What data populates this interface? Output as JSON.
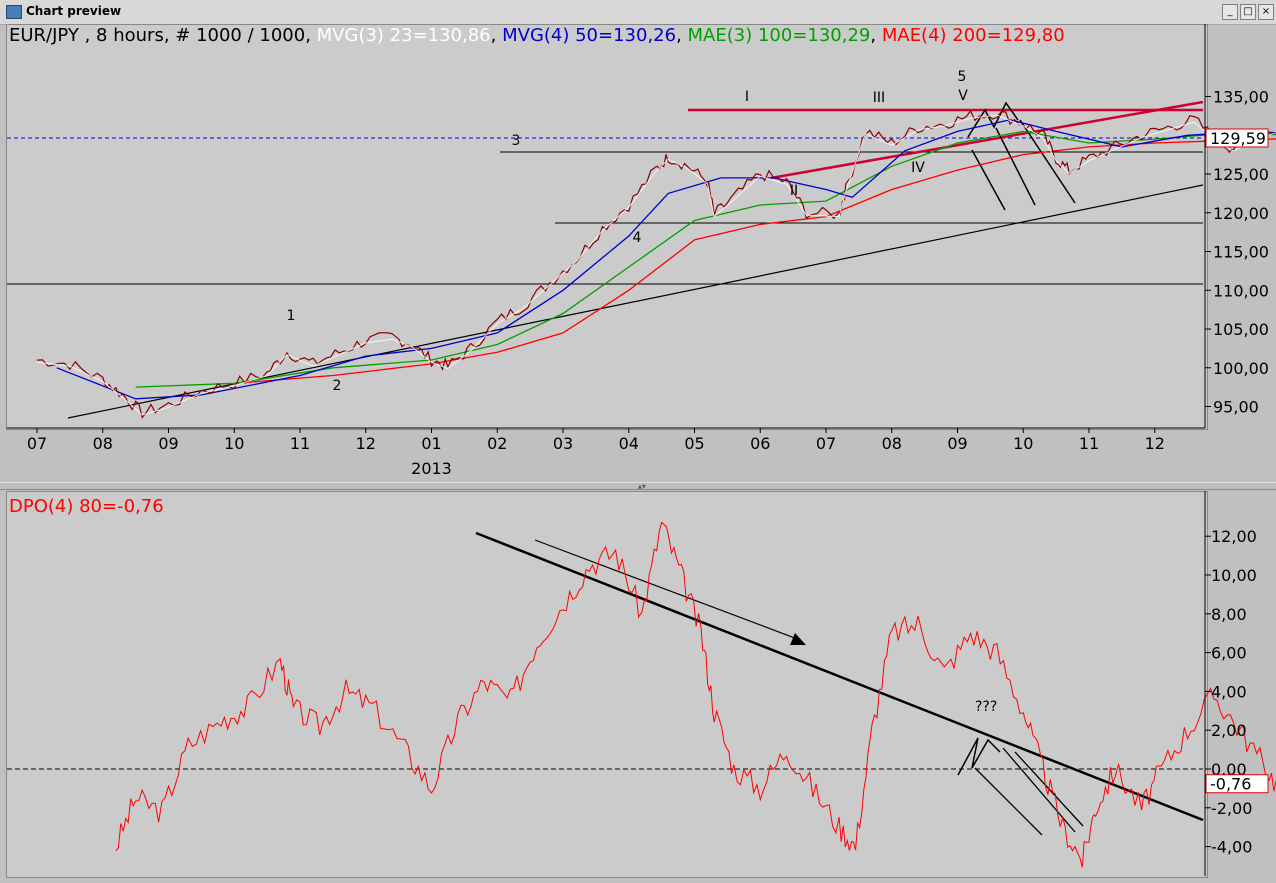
{
  "window": {
    "title": "Chart preview"
  },
  "colors": {
    "mvg3": "#ffffff",
    "mvg4": "#0000cc",
    "mae3": "#00a000",
    "mae4": "#ff0000",
    "wave_channel": "#cc0033",
    "dpo": "#ff0000",
    "price_line": "#0000cc"
  },
  "chart_data": [
    {
      "type": "line",
      "legend": {
        "symbol": "EUR/JPY , 8 hours, # 1000 / 1000",
        "mvg3": "MVG(3) 23=130,86",
        "mvg4": "MVG(4) 50=130,26",
        "mae3": "MAE(3) 100=130,29",
        "mae4": "MAE(4) 200=129,80"
      },
      "ylim": [
        93,
        138
      ],
      "yticks": [
        "95,00",
        "100,00",
        "105,00",
        "110,00",
        "115,00",
        "120,00",
        "125,00",
        "130,00",
        "135,00"
      ],
      "xticks": [
        "07",
        "08",
        "09",
        "10",
        "11",
        "12",
        "01",
        "02",
        "03",
        "04",
        "05",
        "06",
        "07",
        "08",
        "09",
        "10",
        "11",
        "12"
      ],
      "year_label": "2013",
      "current_value": "129,59",
      "wave_labels": [
        "1",
        "2",
        "3",
        "4",
        "5",
        "I",
        "II",
        "III",
        "IV",
        "V"
      ],
      "series": [
        {
          "name": "EUR/JPY",
          "values": [
            [
              0,
              101
            ],
            [
              0.5,
              100.5
            ],
            [
              1,
              98.5
            ],
            [
              1.3,
              96.5
            ],
            [
              1.6,
              94.2
            ],
            [
              2,
              95.2
            ],
            [
              2.5,
              97
            ],
            [
              3,
              98
            ],
            [
              3.5,
              99.3
            ],
            [
              3.8,
              102
            ],
            [
              4.2,
              100.5
            ],
            [
              4.6,
              102
            ],
            [
              5.0,
              103.5
            ],
            [
              5.4,
              104
            ],
            [
              5.7,
              103
            ],
            [
              6.0,
              101
            ],
            [
              6.25,
              100.2
            ],
            [
              6.6,
              102.5
            ],
            [
              7,
              106
            ],
            [
              7.4,
              108
            ],
            [
              7.8,
              111
            ],
            [
              8.2,
              114
            ],
            [
              8.6,
              118
            ],
            [
              9,
              121
            ],
            [
              9.4,
              125.5
            ],
            [
              9.6,
              127.2
            ],
            [
              9.9,
              126
            ],
            [
              10.2,
              124
            ],
            [
              10.3,
              119.8
            ],
            [
              10.6,
              122
            ],
            [
              11,
              125
            ],
            [
              11.4,
              124
            ],
            [
              11.7,
              120
            ],
            [
              12.2,
              119.8
            ],
            [
              12.3,
              123
            ],
            [
              12.6,
              130.5
            ],
            [
              13,
              129
            ],
            [
              13.4,
              131
            ],
            [
              13.8,
              131.5
            ],
            [
              14.2,
              132.5
            ],
            [
              14.6,
              132.9
            ],
            [
              15.0,
              131.5
            ],
            [
              15.3,
              130
            ],
            [
              15.5,
              127
            ],
            [
              15.7,
              125.4
            ],
            [
              16,
              127
            ],
            [
              16.4,
              128.5
            ],
            [
              16.8,
              130
            ],
            [
              17.2,
              131
            ],
            [
              17.6,
              132
            ],
            [
              18.0,
              129
            ],
            [
              18.2,
              128.3
            ],
            [
              18.6,
              130
            ],
            [
              19.0,
              131
            ],
            [
              19.3,
              132
            ],
            [
              19.6,
              130.3
            ]
          ]
        },
        {
          "name": "MVG(4) 50",
          "values": [
            [
              0.3,
              100
            ],
            [
              1.5,
              96
            ],
            [
              2.5,
              96.5
            ],
            [
              4,
              99
            ],
            [
              5,
              101.5
            ],
            [
              6,
              102.5
            ],
            [
              7,
              104.5
            ],
            [
              8,
              110
            ],
            [
              9,
              117
            ],
            [
              9.6,
              122.5
            ],
            [
              10.4,
              124.5
            ],
            [
              11.2,
              124.5
            ],
            [
              12,
              123
            ],
            [
              12.4,
              122
            ],
            [
              13.2,
              128
            ],
            [
              14,
              130.5
            ],
            [
              14.8,
              132
            ],
            [
              15.5,
              130.5
            ],
            [
              16.5,
              128.5
            ],
            [
              17.5,
              130
            ],
            [
              18.5,
              130.5
            ],
            [
              19.5,
              130
            ]
          ]
        },
        {
          "name": "MAE(3) 100",
          "values": [
            [
              1.5,
              97.5
            ],
            [
              3,
              98
            ],
            [
              4.5,
              100
            ],
            [
              6,
              101
            ],
            [
              7,
              103
            ],
            [
              8,
              107
            ],
            [
              9,
              113
            ],
            [
              10,
              119
            ],
            [
              11,
              121
            ],
            [
              12,
              121.5
            ],
            [
              13,
              126
            ],
            [
              14,
              129
            ],
            [
              15,
              130.5
            ],
            [
              16,
              129
            ],
            [
              17,
              129.5
            ],
            [
              18,
              130.2
            ],
            [
              19.5,
              130
            ]
          ]
        },
        {
          "name": "MAE(4) 200",
          "values": [
            [
              3,
              98
            ],
            [
              4.5,
              99
            ],
            [
              6,
              100.5
            ],
            [
              7,
              102
            ],
            [
              8,
              104.5
            ],
            [
              9,
              110
            ],
            [
              10,
              116.5
            ],
            [
              11,
              118.5
            ],
            [
              12,
              119.5
            ],
            [
              13,
              123
            ],
            [
              14,
              125.5
            ],
            [
              15,
              127.5
            ],
            [
              16,
              128.5
            ],
            [
              17,
              129
            ],
            [
              18,
              129.3
            ],
            [
              19.5,
              129.7
            ]
          ]
        }
      ]
    },
    {
      "type": "line",
      "legend": {
        "dpo": "DPO(4) 80=-0,76"
      },
      "ylim": [
        -5,
        14
      ],
      "yticks": [
        "-4,00",
        "-2,00",
        "0,00",
        "2,00",
        "4,00",
        "6,00",
        "8,00",
        "10,00",
        "12,00"
      ],
      "current_value": "-0,76",
      "annotation": "???",
      "series": [
        {
          "name": "DPO(4) 80",
          "values": [
            [
              1.2,
              -4
            ],
            [
              1.5,
              -1.5
            ],
            [
              1.9,
              -2.2
            ],
            [
              2.3,
              1.2
            ],
            [
              2.8,
              2.5
            ],
            [
              3.2,
              3.2
            ],
            [
              3.7,
              5.6
            ],
            [
              3.9,
              3.1
            ],
            [
              4.3,
              2.2
            ],
            [
              4.7,
              4
            ],
            [
              5.1,
              3.2
            ],
            [
              5.6,
              1
            ],
            [
              6.0,
              -1
            ],
            [
              6.4,
              2.5
            ],
            [
              6.8,
              4.5
            ],
            [
              7.2,
              3.5
            ],
            [
              7.6,
              6.5
            ],
            [
              8,
              8.5
            ],
            [
              8.4,
              10.5
            ],
            [
              8.8,
              11.2
            ],
            [
              9.2,
              8
            ],
            [
              9.5,
              12.7
            ],
            [
              9.8,
              10
            ],
            [
              10.1,
              7
            ],
            [
              10.3,
              3
            ],
            [
              10.6,
              0
            ],
            [
              11,
              -1
            ],
            [
              11.4,
              1
            ],
            [
              11.8,
              -1
            ],
            [
              12.2,
              -3
            ],
            [
              12.45,
              -4
            ],
            [
              12.7,
              2
            ],
            [
              13,
              7
            ],
            [
              13.4,
              7.5
            ],
            [
              13.8,
              5
            ],
            [
              14.2,
              7
            ],
            [
              14.6,
              6
            ],
            [
              15,
              3
            ],
            [
              15.3,
              0
            ],
            [
              15.6,
              -3
            ],
            [
              15.9,
              -4.7
            ],
            [
              16.1,
              -2
            ],
            [
              16.4,
              0
            ],
            [
              16.8,
              -2
            ],
            [
              17.1,
              0
            ],
            [
              17.5,
              2
            ],
            [
              17.9,
              3.8
            ],
            [
              18.3,
              2
            ],
            [
              18.7,
              0
            ],
            [
              19.0,
              -1.5
            ],
            [
              19.4,
              0
            ],
            [
              19.8,
              1.5
            ],
            [
              20.1,
              -0.76
            ]
          ]
        }
      ]
    }
  ]
}
